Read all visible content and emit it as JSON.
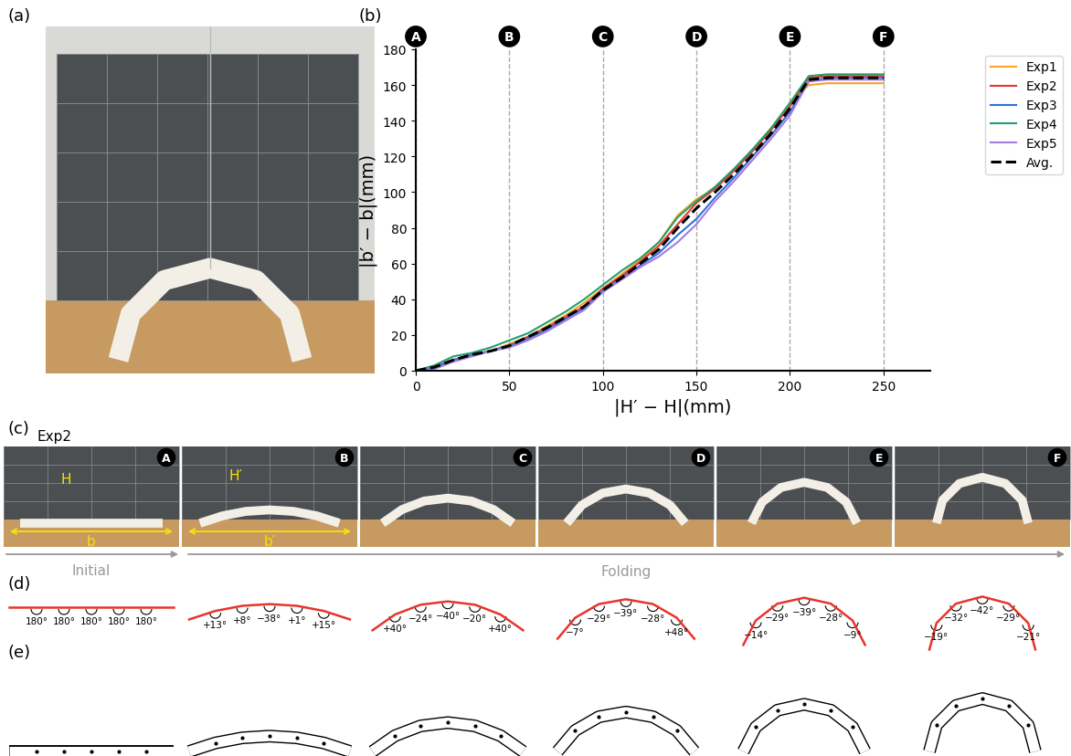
{
  "panel_labels": [
    "(a)",
    "(b)",
    "(c)",
    "(d)",
    "(e)"
  ],
  "chart_data": {
    "type": "line",
    "xlabel": "|H′ − H|(mm)",
    "ylabel": "|b′ − b|(mm)",
    "x": [
      0,
      10,
      20,
      30,
      40,
      50,
      60,
      70,
      80,
      90,
      100,
      110,
      120,
      130,
      140,
      150,
      160,
      170,
      180,
      190,
      200,
      210,
      220,
      230,
      240,
      250
    ],
    "series": [
      {
        "name": "Exp1",
        "color": "#f4a522",
        "line_style": "solid",
        "values": [
          0,
          2,
          6,
          9,
          11,
          15,
          19,
          25,
          31,
          38,
          46,
          54,
          62,
          72,
          87,
          96,
          102,
          112,
          123,
          135,
          150,
          160,
          161,
          161,
          161,
          161
        ]
      },
      {
        "name": "Exp2",
        "color": "#e8342c",
        "line_style": "solid",
        "values": [
          0,
          2,
          6,
          9,
          11,
          14,
          19,
          24,
          30,
          36,
          46,
          53,
          61,
          70,
          82,
          94,
          102,
          112,
          123,
          135,
          148,
          164,
          165,
          165,
          165,
          165
        ]
      },
      {
        "name": "Exp3",
        "color": "#2f6fe0",
        "line_style": "solid",
        "values": [
          0,
          2,
          6,
          9,
          11,
          14,
          18,
          23,
          29,
          35,
          45,
          52,
          59,
          66,
          76,
          85,
          97,
          108,
          120,
          132,
          145,
          162,
          164,
          164,
          164,
          164
        ]
      },
      {
        "name": "Exp4",
        "color": "#22a06b",
        "line_style": "solid",
        "values": [
          0,
          3,
          8,
          10,
          13,
          17,
          21,
          27,
          33,
          40,
          48,
          56,
          63,
          72,
          86,
          95,
          103,
          113,
          124,
          136,
          150,
          165,
          166,
          166,
          166,
          166
        ]
      },
      {
        "name": "Exp5",
        "color": "#a57be0",
        "line_style": "solid",
        "values": [
          0,
          1,
          5,
          8,
          11,
          13,
          17,
          22,
          28,
          34,
          44,
          51,
          58,
          64,
          72,
          82,
          95,
          106,
          118,
          130,
          143,
          162,
          163,
          163,
          163,
          163
        ]
      },
      {
        "name": "Avg.",
        "color": "#000000",
        "line_style": "dashed",
        "values": [
          0,
          2,
          6,
          9,
          11,
          14,
          19,
          24,
          30,
          36,
          45,
          52,
          60,
          68,
          80,
          91,
          100,
          110,
          121,
          133,
          147,
          163,
          164,
          164,
          164,
          164
        ]
      }
    ],
    "xlim": [
      0,
      275
    ],
    "ylim": [
      0,
      180
    ],
    "xticks": [
      0,
      50,
      100,
      150,
      200,
      250
    ],
    "yticks": [
      0,
      20,
      40,
      60,
      80,
      100,
      120,
      140,
      160,
      180
    ],
    "legend": "upper right",
    "stages": {
      "labels": [
        "A",
        "B",
        "C",
        "D",
        "E",
        "F"
      ],
      "x": [
        0,
        50,
        100,
        150,
        200,
        250
      ]
    }
  },
  "photo_strip": {
    "title": "Exp2",
    "stages": [
      "A",
      "B",
      "C",
      "D",
      "E",
      "F"
    ],
    "initial_labels": [
      "H",
      "b"
    ],
    "folding_labels": [
      "H′",
      "b′"
    ],
    "phases": [
      "Initial",
      "Folding"
    ]
  },
  "fold_angles": [
    [
      "180°",
      "180°",
      "180°",
      "180°",
      "180°"
    ],
    [
      "+13°",
      "+8°",
      "−38°",
      "+1°",
      "+15°"
    ],
    [
      "+40°",
      "−24°",
      "−40°",
      "−20°",
      "+40°"
    ],
    [
      "−7°",
      "−29°",
      "−39°",
      "−28°",
      "+48°"
    ],
    [
      "−14°",
      "−29°",
      "−39°",
      "−28°",
      "−9°"
    ],
    [
      "−19°",
      "−32°",
      "−42°",
      "−29°",
      "−21°"
    ]
  ]
}
